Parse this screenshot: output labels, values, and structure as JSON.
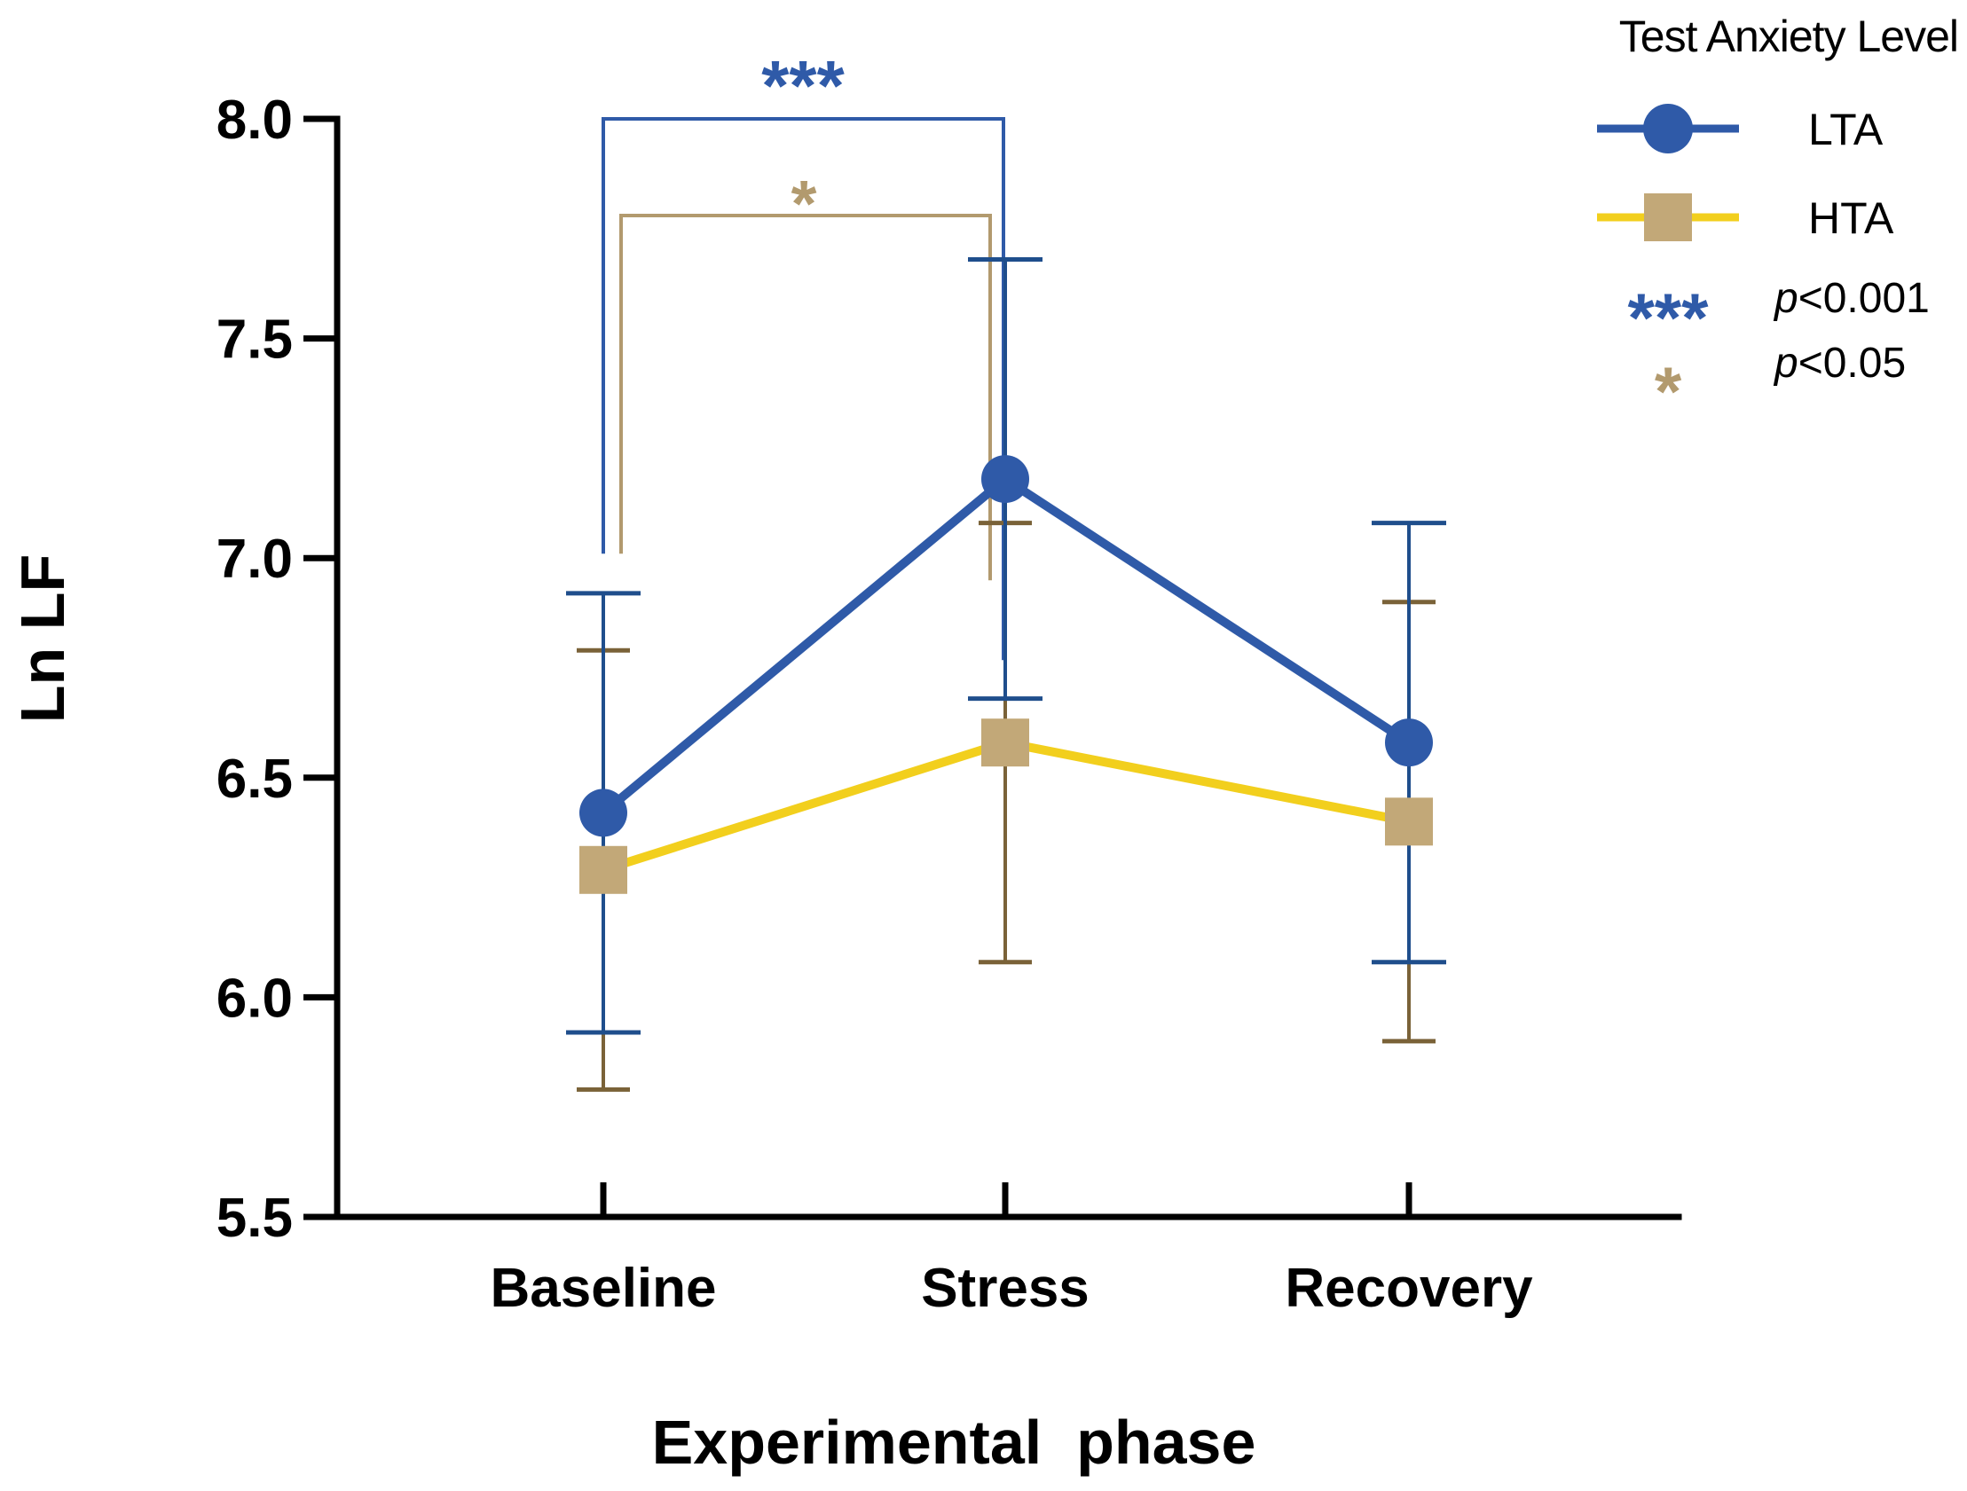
{
  "colors": {
    "lta_line": "#2f5aa8",
    "lta_marker": "#2f5aa8",
    "lta_errorbar": "#1f4e8c",
    "hta_line": "#f2cf1d",
    "hta_marker": "#c2a878",
    "hta_errorbar": "#7a6238",
    "sig_lta": "#2f5aa8",
    "sig_hta": "#b29a6e",
    "axis": "#000000"
  },
  "chart_data": {
    "type": "line",
    "title": "",
    "xlabel": "Experimental  phase",
    "ylabel": "Ln LF",
    "categories": [
      "Baseline",
      "Stress",
      "Recovery"
    ],
    "ylim": [
      5.5,
      8.0
    ],
    "yticks": [
      5.5,
      6.0,
      6.5,
      7.0,
      7.5,
      8.0
    ],
    "ytick_labels": [
      "5.5",
      "6.0",
      "6.5",
      "7.0",
      "7.5",
      "8.0"
    ],
    "grid": false,
    "legend_position": "top-right",
    "legend_title": "Test Anxiety Level",
    "series": [
      {
        "name": "LTA",
        "marker": "circle",
        "values": [
          6.42,
          7.18,
          6.58
        ],
        "error_upper": [
          6.92,
          7.68,
          7.08
        ],
        "error_lower": [
          5.92,
          6.68,
          6.08
        ]
      },
      {
        "name": "HTA",
        "marker": "square",
        "values": [
          6.29,
          6.58,
          6.4
        ],
        "error_upper": [
          6.79,
          7.08,
          6.9
        ],
        "error_lower": [
          5.79,
          6.08,
          5.9
        ]
      }
    ],
    "significance": [
      {
        "series": "LTA",
        "from": "Baseline",
        "to": "Stress",
        "label": "***",
        "bracket_top": 8.0,
        "bracket_bottom": 7.01
      },
      {
        "series": "HTA",
        "from": "Baseline",
        "to": "Stress",
        "label": "*",
        "bracket_top": 7.78,
        "bracket_bottom": 7.01
      }
    ],
    "significance_legend": [
      {
        "symbol": "***",
        "prefix": "p",
        "text": "<0.001",
        "series": "LTA"
      },
      {
        "symbol": "*",
        "prefix": "p",
        "text": "<0.05",
        "series": "HTA"
      }
    ]
  }
}
